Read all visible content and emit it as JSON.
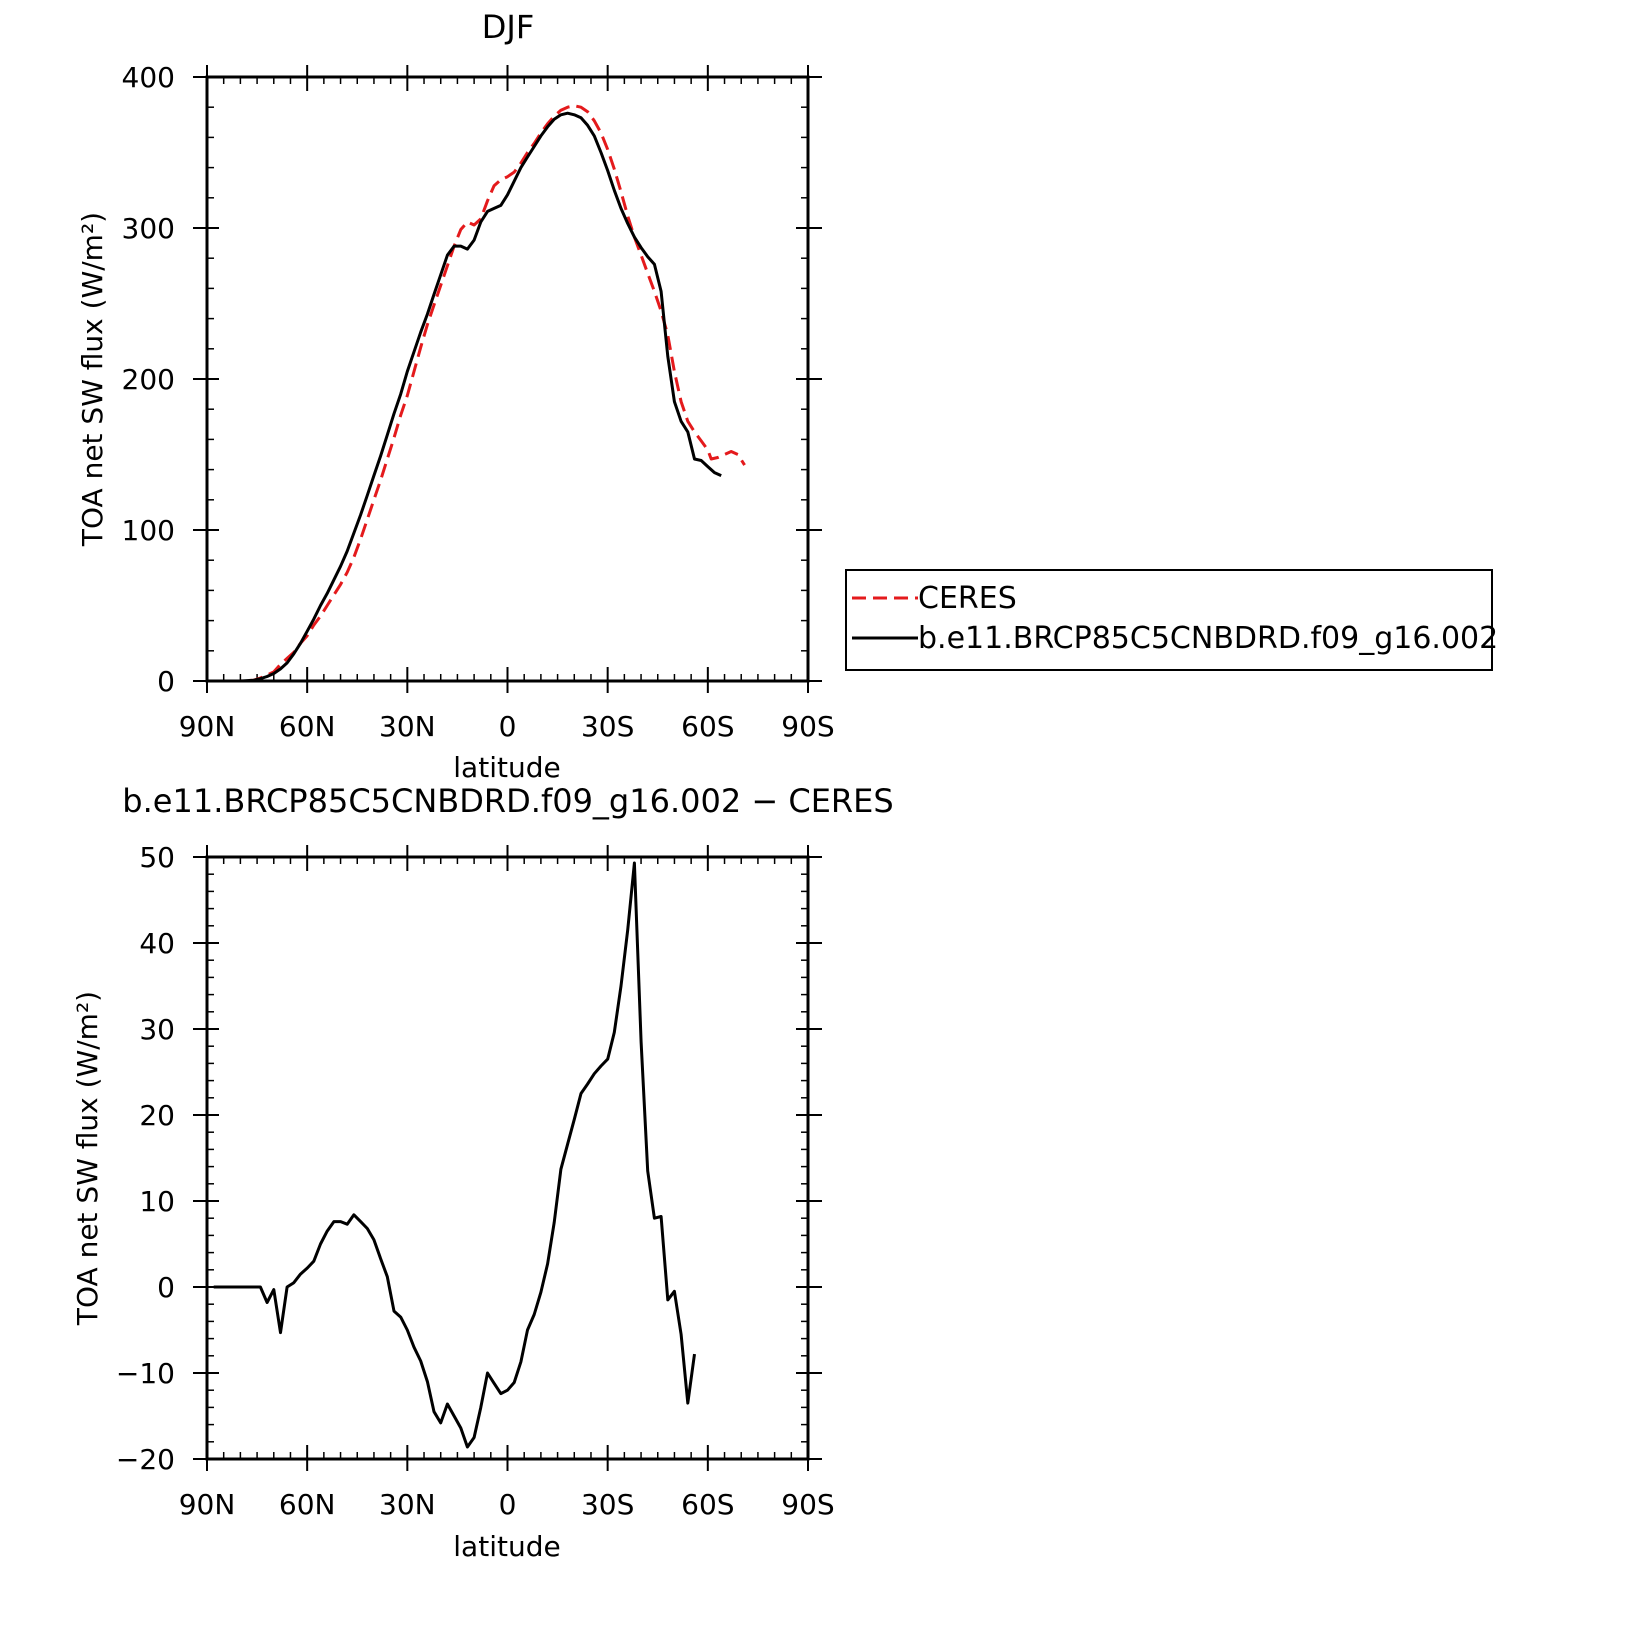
{
  "chart_data": [
    {
      "type": "line",
      "title": "DJF",
      "xlabel": "latitude",
      "ylabel": "TOA net SW flux (W/m²)",
      "xlim": [
        90,
        -90
      ],
      "ylim": [
        0,
        400
      ],
      "x_ticks": [
        90,
        60,
        30,
        0,
        -30,
        -60,
        -90
      ],
      "x_tick_labels": [
        "90N",
        "60N",
        "30N",
        "0",
        "30S",
        "60S",
        "90S"
      ],
      "y_ticks": [
        0,
        100,
        200,
        300,
        400
      ],
      "y_tick_labels": [
        "0",
        "100",
        "200",
        "300",
        "400"
      ],
      "legend": "right-outside",
      "series": [
        {
          "name": "CERES",
          "color": "#e41a1c",
          "dash": "dashed",
          "points": [
            [
              90,
              0
            ],
            [
              85,
              0
            ],
            [
              80,
              0
            ],
            [
              76,
              0.5
            ],
            [
              74,
              2
            ],
            [
              72,
              4
            ],
            [
              70,
              6
            ],
            [
              68,
              11
            ],
            [
              66,
              15
            ],
            [
              64,
              19
            ],
            [
              62,
              25
            ],
            [
              60,
              30
            ],
            [
              58,
              37
            ],
            [
              56,
              43
            ],
            [
              54,
              50
            ],
            [
              52,
              57
            ],
            [
              50,
              64
            ],
            [
              48,
              72
            ],
            [
              46,
              82
            ],
            [
              44,
              94
            ],
            [
              42,
              107
            ],
            [
              40,
              120
            ],
            [
              38,
              133
            ],
            [
              36,
              147
            ],
            [
              34,
              161
            ],
            [
              32,
              176
            ],
            [
              30,
              189
            ],
            [
              28,
              205
            ],
            [
              26,
              221
            ],
            [
              24,
              236
            ],
            [
              22,
              249
            ],
            [
              20,
              262
            ],
            [
              18,
              275
            ],
            [
              16,
              288
            ],
            [
              14,
              299
            ],
            [
              12,
              304
            ],
            [
              10,
              302
            ],
            [
              8,
              306
            ],
            [
              6,
              318
            ],
            [
              4,
              328
            ],
            [
              2,
              332
            ],
            [
              0,
              334
            ],
            [
              -2,
              337
            ],
            [
              -4,
              343
            ],
            [
              -6,
              350
            ],
            [
              -8,
              356
            ],
            [
              -10,
              363
            ],
            [
              -12,
              369
            ],
            [
              -14,
              374
            ],
            [
              -16,
              378
            ],
            [
              -18,
              380
            ],
            [
              -20,
              381
            ],
            [
              -22,
              380
            ],
            [
              -24,
              377
            ],
            [
              -26,
              371
            ],
            [
              -28,
              363
            ],
            [
              -30,
              352
            ],
            [
              -32,
              339
            ],
            [
              -34,
              324
            ],
            [
              -36,
              308
            ],
            [
              -38,
              294
            ],
            [
              -40,
              282
            ],
            [
              -42,
              270
            ],
            [
              -44,
              258
            ],
            [
              -46,
              245
            ],
            [
              -48,
              229
            ],
            [
              -50,
              205
            ],
            [
              -52,
              185
            ],
            [
              -54,
              172
            ],
            [
              -56,
              165
            ],
            [
              -58,
              159
            ],
            [
              -60,
              153
            ],
            [
              -61,
              147
            ],
            [
              -63,
              148
            ],
            [
              -65,
              150
            ],
            [
              -67,
              152
            ],
            [
              -69,
              150
            ],
            [
              -71,
              143
            ]
          ]
        },
        {
          "name": "b.e11.BRCP85C5CNBDRD.f09_g16.002",
          "color": "#000000",
          "dash": "solid",
          "points": [
            [
              90,
              0
            ],
            [
              85,
              0
            ],
            [
              80,
              0
            ],
            [
              76,
              0.5
            ],
            [
              74,
              1.5
            ],
            [
              72,
              3
            ],
            [
              70,
              5
            ],
            [
              68,
              8
            ],
            [
              66,
              12
            ],
            [
              64,
              18
            ],
            [
              62,
              25
            ],
            [
              60,
              33
            ],
            [
              58,
              41
            ],
            [
              56,
              50
            ],
            [
              54,
              58
            ],
            [
              52,
              67
            ],
            [
              50,
              76
            ],
            [
              48,
              86
            ],
            [
              46,
              98
            ],
            [
              44,
              110
            ],
            [
              42,
              123
            ],
            [
              40,
              136
            ],
            [
              38,
              149
            ],
            [
              36,
              163
            ],
            [
              34,
              177
            ],
            [
              32,
              190
            ],
            [
              30,
              205
            ],
            [
              28,
              218
            ],
            [
              26,
              231
            ],
            [
              24,
              243
            ],
            [
              22,
              256
            ],
            [
              20,
              269
            ],
            [
              18,
              282
            ],
            [
              16,
              288
            ],
            [
              14,
              288
            ],
            [
              12,
              286
            ],
            [
              10,
              292
            ],
            [
              8,
              304
            ],
            [
              6,
              311
            ],
            [
              4,
              313
            ],
            [
              2,
              315
            ],
            [
              0,
              322
            ],
            [
              -2,
              331
            ],
            [
              -4,
              340
            ],
            [
              -6,
              347
            ],
            [
              -8,
              354
            ],
            [
              -10,
              361
            ],
            [
              -12,
              367
            ],
            [
              -14,
              372
            ],
            [
              -16,
              375
            ],
            [
              -18,
              376
            ],
            [
              -20,
              375
            ],
            [
              -22,
              373
            ],
            [
              -24,
              368
            ],
            [
              -26,
              361
            ],
            [
              -28,
              350
            ],
            [
              -30,
              338
            ],
            [
              -32,
              325
            ],
            [
              -34,
              313
            ],
            [
              -36,
              303
            ],
            [
              -38,
              294
            ],
            [
              -40,
              287
            ],
            [
              -42,
              281
            ],
            [
              -44,
              276
            ],
            [
              -46,
              258
            ],
            [
              -48,
              215
            ],
            [
              -50,
              185
            ],
            [
              -52,
              172
            ],
            [
              -54,
              165
            ],
            [
              -56,
              147
            ],
            [
              -58,
              146
            ],
            [
              -60,
              142
            ],
            [
              -62,
              138
            ],
            [
              -64,
              136
            ]
          ]
        }
      ]
    },
    {
      "type": "line",
      "title": "b.e11.BRCP85C5CNBDRD.f09_g16.002 − CERES",
      "xlabel": "latitude",
      "ylabel": "TOA net SW flux (W/m²)",
      "xlim": [
        90,
        -90
      ],
      "ylim": [
        -20,
        50
      ],
      "x_ticks": [
        90,
        60,
        30,
        0,
        -30,
        -60,
        -90
      ],
      "x_tick_labels": [
        "90N",
        "60N",
        "30N",
        "0",
        "30S",
        "60S",
        "90S"
      ],
      "y_ticks": [
        -20,
        -10,
        0,
        10,
        20,
        30,
        40,
        50
      ],
      "y_tick_labels": [
        "−20",
        "−10",
        "0",
        "10",
        "20",
        "30",
        "40",
        "50"
      ],
      "series": [
        {
          "color": "#000000",
          "dash": "solid",
          "points": [
            [
              88,
              0
            ],
            [
              84,
              0
            ],
            [
              80,
              0
            ],
            [
              76,
              0
            ],
            [
              74,
              0
            ],
            [
              72,
              -1.8
            ],
            [
              70,
              -0.3
            ],
            [
              68,
              -5.3
            ],
            [
              66,
              0
            ],
            [
              64,
              0.5
            ],
            [
              62,
              1.5
            ],
            [
              60,
              2.2
            ],
            [
              58,
              3
            ],
            [
              56,
              5
            ],
            [
              54,
              6.5
            ],
            [
              52,
              7.6
            ],
            [
              50,
              7.6
            ],
            [
              48,
              7.3
            ],
            [
              46,
              8.4
            ],
            [
              44,
              7.6
            ],
            [
              42,
              6.8
            ],
            [
              40,
              5.5
            ],
            [
              38,
              3.3
            ],
            [
              36,
              1.2
            ],
            [
              34,
              -2.8
            ],
            [
              32,
              -3.5
            ],
            [
              30,
              -5
            ],
            [
              28,
              -7
            ],
            [
              26,
              -8.6
            ],
            [
              24,
              -11
            ],
            [
              22,
              -14.5
            ],
            [
              20,
              -15.8
            ],
            [
              18,
              -13.6
            ],
            [
              16,
              -15
            ],
            [
              14,
              -16.4
            ],
            [
              12,
              -18.6
            ],
            [
              10,
              -17.5
            ],
            [
              8,
              -14
            ],
            [
              6,
              -10
            ],
            [
              4,
              -11.2
            ],
            [
              2,
              -12.4
            ],
            [
              0,
              -12
            ],
            [
              -2,
              -11.1
            ],
            [
              -4,
              -8.7
            ],
            [
              -6,
              -5
            ],
            [
              -8,
              -3.2
            ],
            [
              -10,
              -0.6
            ],
            [
              -12,
              2.7
            ],
            [
              -14,
              7.5
            ],
            [
              -16,
              13.7
            ],
            [
              -18,
              16.6
            ],
            [
              -20,
              19.5
            ],
            [
              -22,
              22.5
            ],
            [
              -24,
              23.6
            ],
            [
              -26,
              24.8
            ],
            [
              -28,
              25.7
            ],
            [
              -30,
              26.5
            ],
            [
              -32,
              29.6
            ],
            [
              -34,
              35
            ],
            [
              -36,
              41.5
            ],
            [
              -38,
              49.3
            ],
            [
              -40,
              28.5
            ],
            [
              -42,
              13.5
            ],
            [
              -44,
              8
            ],
            [
              -46,
              8.2
            ],
            [
              -48,
              -1.5
            ],
            [
              -50,
              -0.5
            ],
            [
              -52,
              -5.5
            ],
            [
              -54,
              -13.5
            ],
            [
              -56,
              -7.8
            ]
          ]
        }
      ]
    }
  ]
}
